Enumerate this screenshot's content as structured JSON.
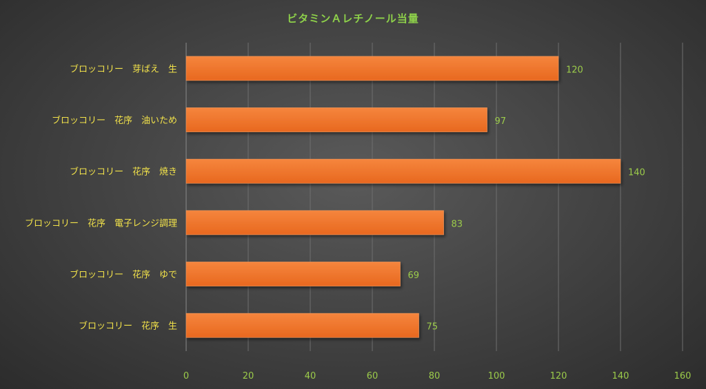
{
  "chart_data": {
    "type": "bar",
    "orientation": "horizontal",
    "title": "ビタミンＡレチノール当量",
    "categories": [
      "ブロッコリー　芽ばえ　生",
      "ブロッコリー　花序　油いため",
      "ブロッコリー　花序　焼き",
      "ブロッコリー　花序　電子レンジ調理",
      "ブロッコリー　花序　ゆで",
      "ブロッコリー　花序　生"
    ],
    "values": [
      120,
      97,
      140,
      83,
      69,
      75
    ],
    "xlim": [
      0,
      160
    ],
    "xticks": [
      "0",
      "20",
      "40",
      "60",
      "80",
      "100",
      "120",
      "140",
      "160"
    ],
    "grid": true,
    "legend": "none"
  },
  "colors": {
    "bar_top": "#f5853d",
    "bar_bottom": "#e8681f",
    "bar_edge": "#f39a5e",
    "title": "#8ed14a",
    "category_text": "#f2e24a",
    "tick_text": "#9ccc4a",
    "data_label": "#9ccc4a",
    "grid": "#6e6e6e",
    "axis": "#8a8a8a"
  }
}
